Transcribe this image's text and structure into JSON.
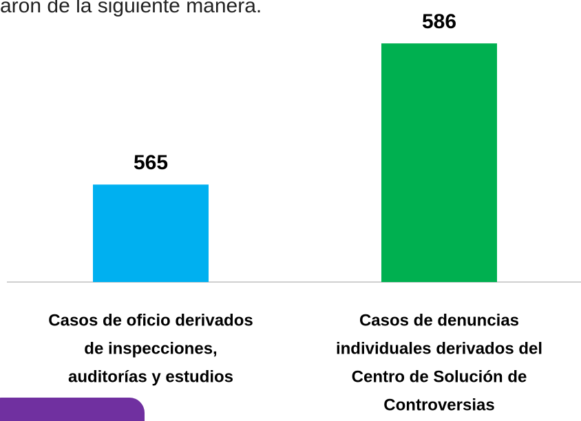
{
  "chart_data": {
    "type": "bar",
    "title": "aron de la siguiente manera.",
    "categories": [
      [
        "Casos de oficio derivados",
        "de inspecciones,",
        "auditorías y estudios"
      ],
      [
        "Casos de denuncias",
        "individuales derivados del",
        "Centro de Solución de",
        "Controversias"
      ]
    ],
    "values": [
      565,
      586
    ],
    "colors": [
      "#00b0f0",
      "#00b050"
    ],
    "ylim": [
      550.5,
      590
    ]
  }
}
